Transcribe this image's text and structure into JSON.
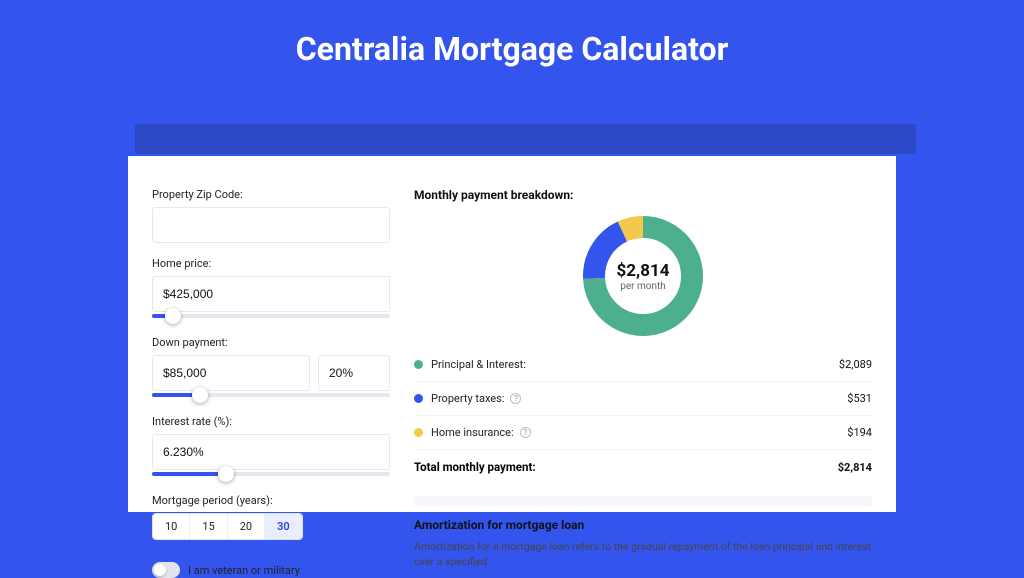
{
  "page": {
    "title": "Centralia Mortgage Calculator",
    "bg_color": "#3355ee",
    "shadow_color": "#2e49c7",
    "panel_color": "#ffffff"
  },
  "form": {
    "zip_label": "Property Zip Code:",
    "zip_value": "",
    "home_price_label": "Home price:",
    "home_price_value": "$425,000",
    "home_price_slider_pct": 9,
    "down_payment_label": "Down payment:",
    "down_payment_value": "$85,000",
    "down_payment_pct_value": "20%",
    "down_payment_slider_pct": 20,
    "interest_label": "Interest rate (%):",
    "interest_value": "6.230%",
    "interest_slider_pct": 31,
    "period_label": "Mortgage period (years):",
    "period_options": [
      "10",
      "15",
      "20",
      "30"
    ],
    "period_selected": "30",
    "veteran_label": "I am veteran or military",
    "veteran_on": false
  },
  "breakdown": {
    "title": "Monthly payment breakdown:",
    "center_value": "$2,814",
    "center_sub": "per month",
    "donut": {
      "size": 120,
      "thickness": 22,
      "segments": [
        {
          "label": "Principal & Interest",
          "value": 2089,
          "color": "#4caf8e",
          "start_deg": 0,
          "end_deg": 267.2
        },
        {
          "label": "Property taxes",
          "value": 531,
          "color": "#3355ee",
          "start_deg": 267.2,
          "end_deg": 335.2
        },
        {
          "label": "Home insurance",
          "value": 194,
          "color": "#f3c94b",
          "start_deg": 335.2,
          "end_deg": 360
        }
      ]
    },
    "rows": [
      {
        "label": "Principal & Interest:",
        "value": "$2,089",
        "color": "#4caf8e",
        "info": false
      },
      {
        "label": "Property taxes:",
        "value": "$531",
        "color": "#3355ee",
        "info": true
      },
      {
        "label": "Home insurance:",
        "value": "$194",
        "color": "#f3c94b",
        "info": true
      }
    ],
    "total_label": "Total monthly payment:",
    "total_value": "$2,814"
  },
  "amortization": {
    "title": "Amortization for mortgage loan",
    "text": "Amortization for a mortgage loan refers to the gradual repayment of the loan principal and interest over a specified"
  }
}
